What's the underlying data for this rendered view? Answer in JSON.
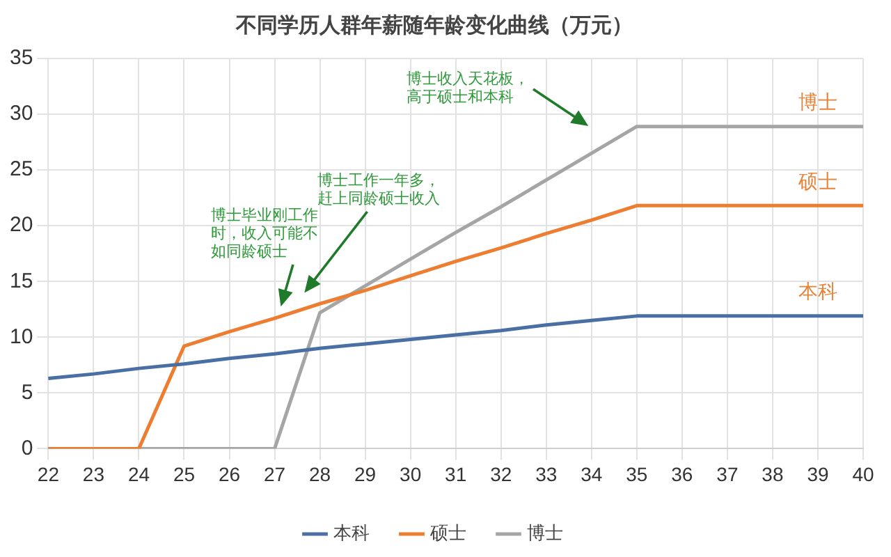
{
  "chart_data": {
    "type": "line",
    "title": "不同学历人群年薪随年龄变化曲线（万元）",
    "categories": [
      "22",
      "23",
      "24",
      "25",
      "26",
      "27",
      "28",
      "29",
      "30",
      "31",
      "32",
      "33",
      "34",
      "35",
      "36",
      "37",
      "38",
      "39",
      "40"
    ],
    "series": [
      {
        "name": "本科",
        "color": "#4a6fa5",
        "values": [
          6.3,
          6.7,
          7.2,
          7.6,
          8.1,
          8.5,
          9.0,
          9.4,
          9.8,
          10.2,
          10.6,
          11.1,
          11.5,
          11.9,
          11.9,
          11.9,
          11.9,
          11.9,
          11.9
        ]
      },
      {
        "name": "硕士",
        "color": "#ed7d31",
        "values": [
          0,
          0,
          0,
          9.2,
          10.5,
          11.7,
          13.0,
          14.2,
          15.5,
          16.8,
          18.0,
          19.3,
          20.5,
          21.8,
          21.8,
          21.8,
          21.8,
          21.8,
          21.8
        ]
      },
      {
        "name": "博士",
        "color": "#a5a5a5",
        "values": [
          0,
          0,
          0,
          0,
          0,
          0,
          12.2,
          14.6,
          17.0,
          19.4,
          21.7,
          24.1,
          26.5,
          28.9,
          28.9,
          28.9,
          28.9,
          28.9,
          28.9
        ]
      }
    ],
    "ylim": [
      0,
      35
    ],
    "yticks": [
      0,
      5,
      10,
      15,
      20,
      25,
      30,
      35
    ],
    "grid": true,
    "legend": "bottom",
    "marker": "none",
    "line_style": "solid",
    "annotations": [
      "博士毕业刚工作时，收入可能不如同龄硕士",
      "博士工作一年多，赶上同龄硕士收入",
      "博士收入天花板，高于硕士和本科",
      {
        "text": "博士",
        "x": "39",
        "y": 28.9
      },
      {
        "text": "硕士",
        "x": "39",
        "y": 21.8
      },
      {
        "text": "本科",
        "x": "39",
        "y": 11.9
      }
    ]
  }
}
